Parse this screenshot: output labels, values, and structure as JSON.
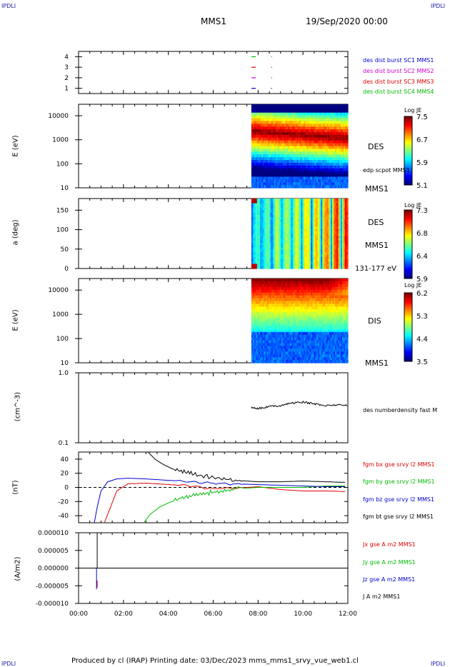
{
  "header": {
    "corner_left": "IPDLI",
    "corner_right": "IPDLI",
    "title": "MMS1",
    "date": "19/Sep/2020 00:00"
  },
  "footer": {
    "text": "Produced by cl (IRAP)   Printing date: 03/Dec/2023   mms_mms1_srvy_vue_web1.cl",
    "corner_left": "IPDLI",
    "corner_right": "IPDLI"
  },
  "x_ticks": [
    "00:00",
    "02:00",
    "04:00",
    "06:00",
    "08:00",
    "10:00",
    "12:00"
  ],
  "panels": {
    "burst": {
      "yticks": [
        "4",
        "3",
        "2",
        "1"
      ],
      "legend": [
        {
          "label": "des dist burst SC1 MMS1",
          "color": "#0000cc"
        },
        {
          "label": "des dist burst SC2 MMS2",
          "color": "#cc00cc"
        },
        {
          "label": "des dist burst SC3 MMS3",
          "color": "#dd0000"
        },
        {
          "label": "des dist burst SC4 MMS4",
          "color": "#00bb00"
        }
      ]
    },
    "des_energy": {
      "ylabel": "E (eV)",
      "yticks": [
        "10000",
        "1000",
        "100",
        "10"
      ],
      "label": "DES",
      "scpot": "edp scpot MMS1",
      "mms": "MMS1",
      "colorbar": {
        "title": "Log JE",
        "ticks": [
          "7.5",
          "6.7",
          "5.9",
          "5.1"
        ]
      }
    },
    "des_pitch": {
      "ylabel": "a (deg)",
      "yticks": [
        "150",
        "100",
        "50",
        "0"
      ],
      "label": "DES",
      "mms": "MMS1",
      "range": "131-177 eV",
      "colorbar": {
        "title": "Log JE",
        "ticks": [
          "7.3",
          "6.8",
          "6.4",
          "5.9"
        ]
      }
    },
    "dis_energy": {
      "ylabel": "E (eV)",
      "yticks": [
        "10000",
        "1000",
        "100",
        "10"
      ],
      "label": "DIS",
      "mms": "MMS1",
      "colorbar": {
        "title": "Log JE",
        "ticks": [
          "6.2",
          "5.3",
          "4.4",
          "3.5"
        ]
      }
    },
    "density": {
      "ylabel": "(cm^-3)",
      "yticks": [
        "1.0",
        "0.1"
      ],
      "label": "des numberdensity fast M"
    },
    "bfield": {
      "ylabel": "(nT)",
      "yticks": [
        "40",
        "20",
        "0",
        "-20",
        "-40"
      ],
      "legend": [
        {
          "label": "fgm bx gse srvy l2 MMS1",
          "color": "#dd0000"
        },
        {
          "label": "fgm by gse srvy l2 MMS1",
          "color": "#00bb00"
        },
        {
          "label": "fgm bz gse srvy l2 MMS1",
          "color": "#0000cc"
        },
        {
          "label": "fgm bt gse srvy l2 MMS1",
          "color": "#000000"
        }
      ]
    },
    "current": {
      "ylabel": "(A/m2)",
      "yticks": [
        "0.000010",
        "0.000005",
        "0.000000",
        "-0.000005",
        "-0.000010"
      ],
      "legend": [
        {
          "label": "Jx gse A m2 MMS1",
          "color": "#dd0000"
        },
        {
          "label": "Jy gse A m2 MMS1",
          "color": "#00bb00"
        },
        {
          "label": "Jz gse A m2 MMS1",
          "color": "#0000cc"
        },
        {
          "label": "J A m2 MMS1",
          "color": "#000000"
        }
      ]
    }
  },
  "chart_data": [
    {
      "type": "scatter",
      "panel": "burst",
      "title": "",
      "xlim_hours": [
        0,
        12
      ],
      "ylim": [
        0.5,
        4.5
      ],
      "series": [
        {
          "name": "des dist burst SC1 MMS1",
          "x_hours": [
            7.8,
            8.6
          ],
          "y": [
            1,
            1
          ]
        },
        {
          "name": "des dist burst SC2 MMS2",
          "x_hours": [
            7.8,
            8.6
          ],
          "y": [
            2,
            2
          ]
        },
        {
          "name": "des dist burst SC3 MMS3",
          "x_hours": [
            7.8,
            8.6
          ],
          "y": [
            3,
            3
          ]
        },
        {
          "name": "des dist burst SC4 MMS4",
          "x_hours": [
            7.8,
            8.6
          ],
          "y": [
            4,
            4
          ]
        }
      ]
    },
    {
      "type": "heatmap",
      "panel": "des_energy",
      "xlim_hours": [
        0,
        12
      ],
      "ylim": [
        10,
        30000
      ],
      "ylog": true,
      "data_start_hour": 7.7,
      "zlim": [
        5.1,
        7.5
      ]
    },
    {
      "type": "heatmap",
      "panel": "des_pitch",
      "xlim_hours": [
        0,
        12
      ],
      "ylim": [
        0,
        180
      ],
      "data_start_hour": 7.7,
      "zlim": [
        5.9,
        7.3
      ]
    },
    {
      "type": "heatmap",
      "panel": "dis_energy",
      "xlim_hours": [
        0,
        12
      ],
      "ylim": [
        10,
        30000
      ],
      "ylog": true,
      "data_start_hour": 7.7,
      "zlim": [
        3.5,
        6.2
      ]
    },
    {
      "type": "line",
      "panel": "density",
      "xlim_hours": [
        0,
        12
      ],
      "ylim": [
        0.1,
        1.0
      ],
      "ylog": true,
      "series": [
        {
          "name": "des numberdensity fast M",
          "x_hours": [
            7.7,
            8.0,
            8.5,
            9.0,
            9.5,
            10.0,
            10.5,
            11.0,
            11.5,
            12.0
          ],
          "y": [
            0.32,
            0.31,
            0.33,
            0.34,
            0.37,
            0.38,
            0.36,
            0.34,
            0.35,
            0.34
          ]
        }
      ]
    },
    {
      "type": "line",
      "panel": "bfield",
      "xlim_hours": [
        0,
        12
      ],
      "ylim": [
        -50,
        50
      ],
      "series": [
        {
          "name": "fgm bx gse srvy l2 MMS1",
          "x_hours": [
            1.15,
            1.4,
            1.7,
            2.2,
            3,
            4,
            5,
            6,
            7,
            8,
            9,
            10,
            11,
            12
          ],
          "y": [
            -50,
            -30,
            -5,
            5,
            6,
            4,
            2,
            -2,
            -1,
            1,
            -3,
            -5,
            -5,
            -6
          ]
        },
        {
          "name": "fgm by gse srvy l2 MMS1",
          "x_hours": [
            2.9,
            3.2,
            3.6,
            4,
            4.5,
            5,
            5.5,
            6,
            6.5,
            7,
            8,
            9,
            10,
            11,
            12
          ],
          "y": [
            -50,
            -38,
            -28,
            -22,
            -16,
            -12,
            -9,
            -7,
            -5,
            -2,
            0,
            0,
            0,
            2,
            2
          ]
        },
        {
          "name": "fgm bz gse srvy l2 MMS1",
          "x_hours": [
            0.7,
            0.85,
            1.0,
            1.3,
            1.7,
            2.2,
            3,
            4,
            5,
            6,
            7,
            8,
            9,
            10,
            11,
            12
          ],
          "y": [
            -50,
            -25,
            -5,
            8,
            12,
            13,
            12,
            10,
            8,
            6,
            5,
            4,
            3,
            2,
            1,
            1
          ]
        },
        {
          "name": "fgm bt gse srvy l2 MMS1",
          "x_hours": [
            3.1,
            3.4,
            3.8,
            4.2,
            4.7,
            5.2,
            5.8,
            6.4,
            7,
            7.5,
            8,
            9,
            10,
            11,
            12
          ],
          "y": [
            50,
            40,
            32,
            26,
            22,
            18,
            15,
            12,
            10,
            9,
            8,
            8,
            9,
            8,
            7
          ]
        }
      ]
    },
    {
      "type": "line",
      "panel": "current",
      "xlim_hours": [
        0,
        12
      ],
      "ylim": [
        -1e-05,
        1e-05
      ],
      "series": [
        {
          "name": "Jx gse A m2 MMS1",
          "x_hours": [
            0.83,
            0.83
          ],
          "y": [
            -3.5e-06,
            -5.5e-06
          ]
        },
        {
          "name": "Jz gse A m2 MMS1",
          "x_hours": [
            0.8,
            0.8
          ],
          "y": [
            0,
            -6e-06
          ]
        },
        {
          "name": "J A m2 MMS1",
          "x_hours": [
            0.83,
            0.83
          ],
          "y": [
            0,
            1e-05
          ]
        }
      ]
    }
  ]
}
